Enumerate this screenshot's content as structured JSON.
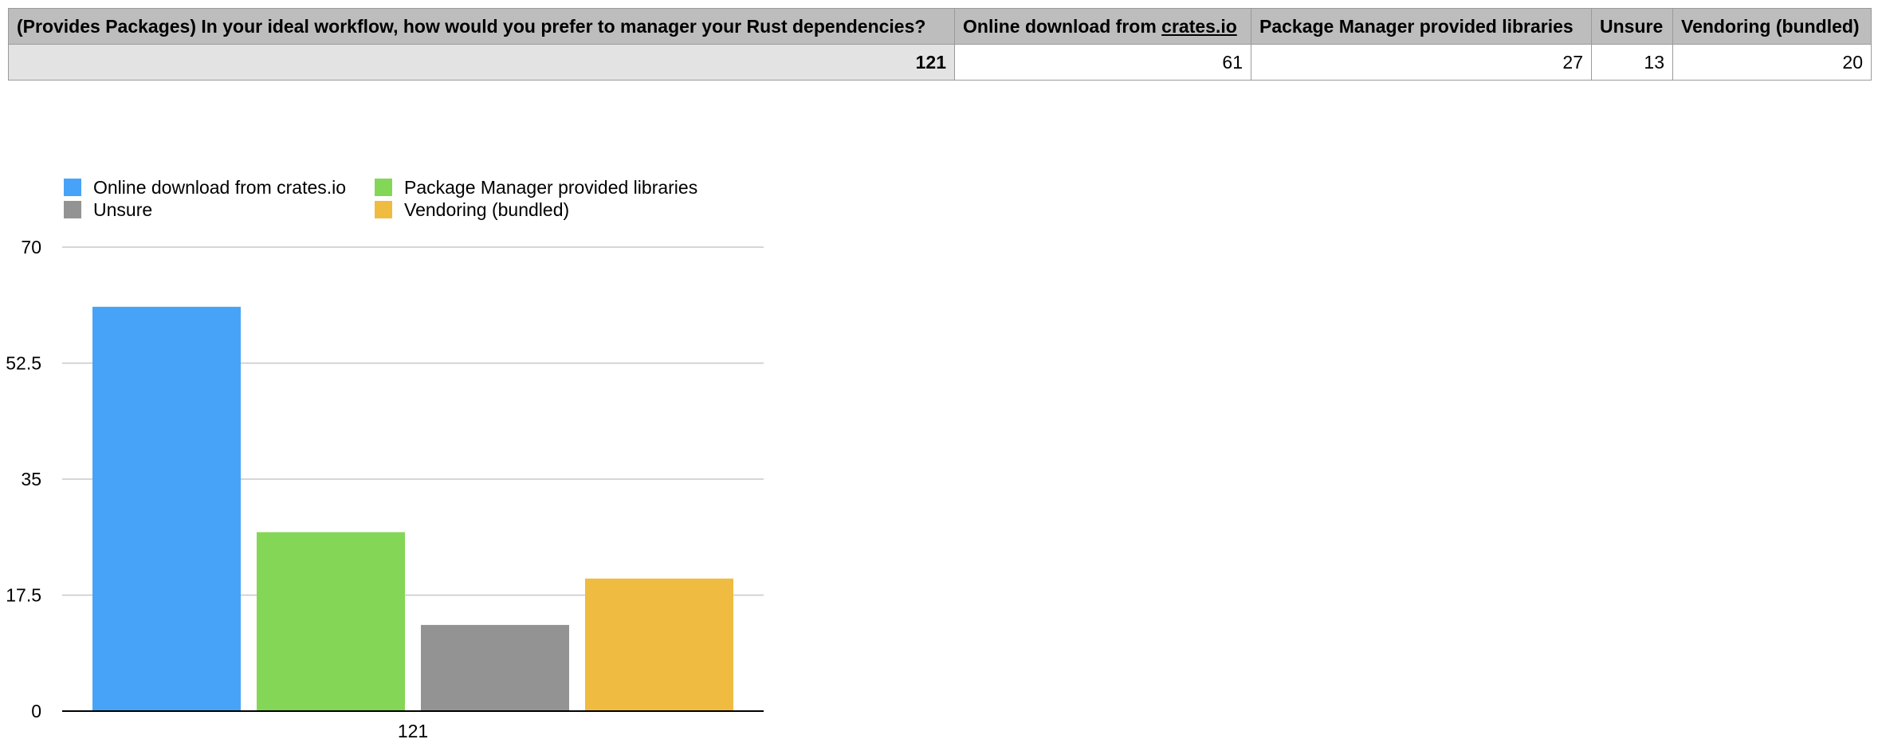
{
  "table": {
    "headers": [
      "(Provides Packages) In your ideal workflow, how would you prefer to manager your Rust dependencies?",
      "Online download from crates.io",
      "Package Manager provided libraries",
      "Unsure",
      "Vendoring (bundled)"
    ],
    "header_parts": {
      "online_prefix": "Online download from ",
      "online_link": "crates.io"
    },
    "rows": [
      {
        "label": "121",
        "values": [
          "61",
          "27",
          "13",
          "20"
        ]
      }
    ]
  },
  "chart_data": {
    "type": "bar",
    "categories": [
      "121"
    ],
    "series": [
      {
        "name": "Online download from crates.io",
        "values": [
          61
        ],
        "color": "#47a3f7"
      },
      {
        "name": "Package Manager provided libraries",
        "values": [
          27
        ],
        "color": "#84d656"
      },
      {
        "name": "Unsure",
        "values": [
          13
        ],
        "color": "#939393"
      },
      {
        "name": "Vendoring (bundled)",
        "values": [
          20
        ],
        "color": "#f0bb41"
      }
    ],
    "title": "",
    "xlabel": "",
    "ylabel": "",
    "ylim": [
      0,
      70
    ],
    "yticks": [
      "0",
      "17.5",
      "35",
      "52.5",
      "70"
    ],
    "grid": true,
    "legend": "top-left"
  }
}
